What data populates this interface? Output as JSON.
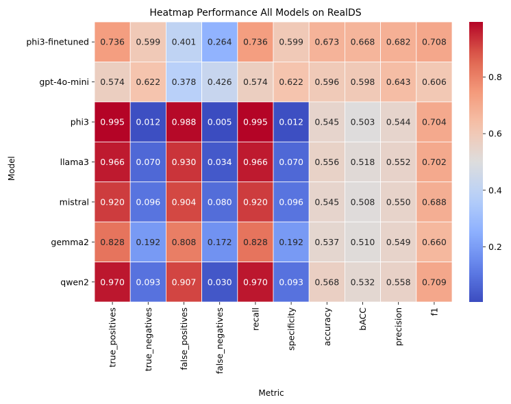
{
  "chart_data": {
    "type": "heatmap",
    "title": "Heatmap Performance All Models on RealDS",
    "xlabel": "Metric",
    "ylabel": "Model",
    "columns": [
      "true_positives",
      "true_negatives",
      "false_positives",
      "false_negatives",
      "recall",
      "specificity",
      "accuracy",
      "bACC",
      "precision",
      "f1"
    ],
    "rows": [
      "phi3-finetuned",
      "gpt-4o-mini",
      "phi3",
      "llama3",
      "mistral",
      "gemma2",
      "qwen2"
    ],
    "values": [
      [
        0.736,
        0.599,
        0.401,
        0.264,
        0.736,
        0.599,
        0.673,
        0.668,
        0.682,
        0.708
      ],
      [
        0.574,
        0.622,
        0.378,
        0.426,
        0.574,
        0.622,
        0.596,
        0.598,
        0.643,
        0.606
      ],
      [
        0.995,
        0.012,
        0.988,
        0.005,
        0.995,
        0.012,
        0.545,
        0.503,
        0.544,
        0.704
      ],
      [
        0.966,
        0.07,
        0.93,
        0.034,
        0.966,
        0.07,
        0.556,
        0.518,
        0.552,
        0.702
      ],
      [
        0.92,
        0.096,
        0.904,
        0.08,
        0.92,
        0.096,
        0.545,
        0.508,
        0.55,
        0.688
      ],
      [
        0.828,
        0.192,
        0.808,
        0.172,
        0.828,
        0.192,
        0.537,
        0.51,
        0.549,
        0.66
      ],
      [
        0.97,
        0.093,
        0.907,
        0.03,
        0.97,
        0.093,
        0.568,
        0.532,
        0.558,
        0.709
      ]
    ],
    "colormap": "coolwarm",
    "vmin": 0.005,
    "vmax": 0.995,
    "colorbar_ticks": [
      0.2,
      0.4,
      0.6,
      0.8
    ],
    "colorbar_tick_labels": [
      "0.2",
      "0.4",
      "0.6",
      "0.8"
    ],
    "annotation_format": "3 decimals"
  }
}
